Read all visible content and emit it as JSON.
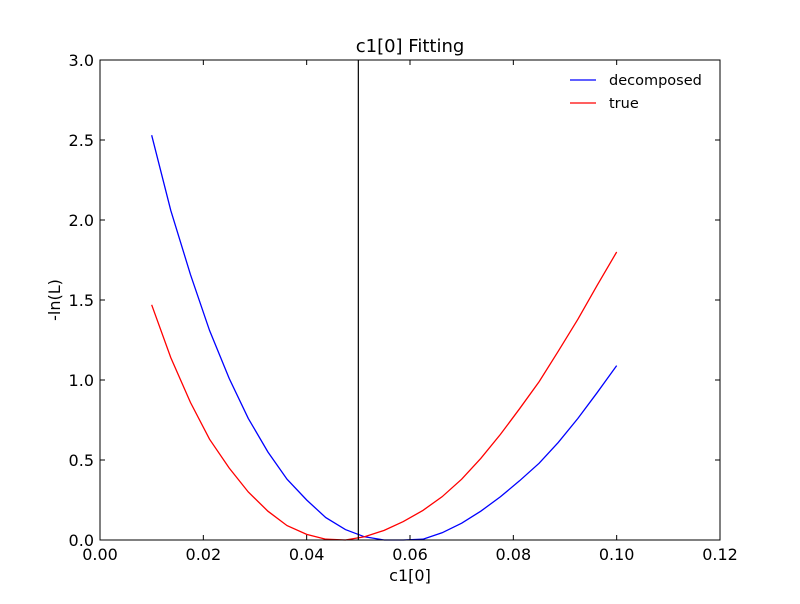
{
  "chart_data": {
    "type": "line",
    "title": "c1[0] Fitting",
    "xlabel": "c1[0]",
    "ylabel": "-ln(L)",
    "xlim": [
      0.0,
      0.12
    ],
    "ylim": [
      0.0,
      3.0
    ],
    "xticks": [
      0.0,
      0.02,
      0.04,
      0.06,
      0.08,
      0.1,
      0.12
    ],
    "xtick_labels": [
      "0.00",
      "0.02",
      "0.04",
      "0.06",
      "0.08",
      "0.10",
      "0.12"
    ],
    "yticks": [
      0.0,
      0.5,
      1.0,
      1.5,
      2.0,
      2.5,
      3.0
    ],
    "ytick_labels": [
      "0.0",
      "0.5",
      "1.0",
      "1.5",
      "2.0",
      "2.5",
      "3.0"
    ],
    "grid": false,
    "legend_position": "top-right",
    "vline": {
      "x": 0.05,
      "color": "#000000"
    },
    "x": [
      0.01,
      0.0137,
      0.0175,
      0.0212,
      0.025,
      0.0287,
      0.0325,
      0.0362,
      0.04,
      0.0437,
      0.0475,
      0.0512,
      0.055,
      0.0587,
      0.0625,
      0.0662,
      0.07,
      0.0737,
      0.0775,
      0.0812,
      0.085,
      0.0887,
      0.0925,
      0.0962,
      0.1
    ],
    "series": [
      {
        "name": "decomposed",
        "color": "#0000ff",
        "values": [
          2.53,
          2.06,
          1.66,
          1.31,
          1.01,
          0.76,
          0.55,
          0.38,
          0.25,
          0.14,
          0.065,
          0.02,
          0.0,
          0.0,
          0.005,
          0.045,
          0.105,
          0.18,
          0.27,
          0.37,
          0.48,
          0.61,
          0.76,
          0.92,
          1.09
        ]
      },
      {
        "name": "true",
        "color": "#ff0000",
        "values": [
          1.47,
          1.14,
          0.86,
          0.63,
          0.45,
          0.3,
          0.18,
          0.09,
          0.035,
          0.005,
          0.0,
          0.02,
          0.06,
          0.115,
          0.185,
          0.27,
          0.38,
          0.51,
          0.66,
          0.82,
          0.99,
          1.18,
          1.38,
          1.59,
          1.8
        ]
      }
    ]
  }
}
